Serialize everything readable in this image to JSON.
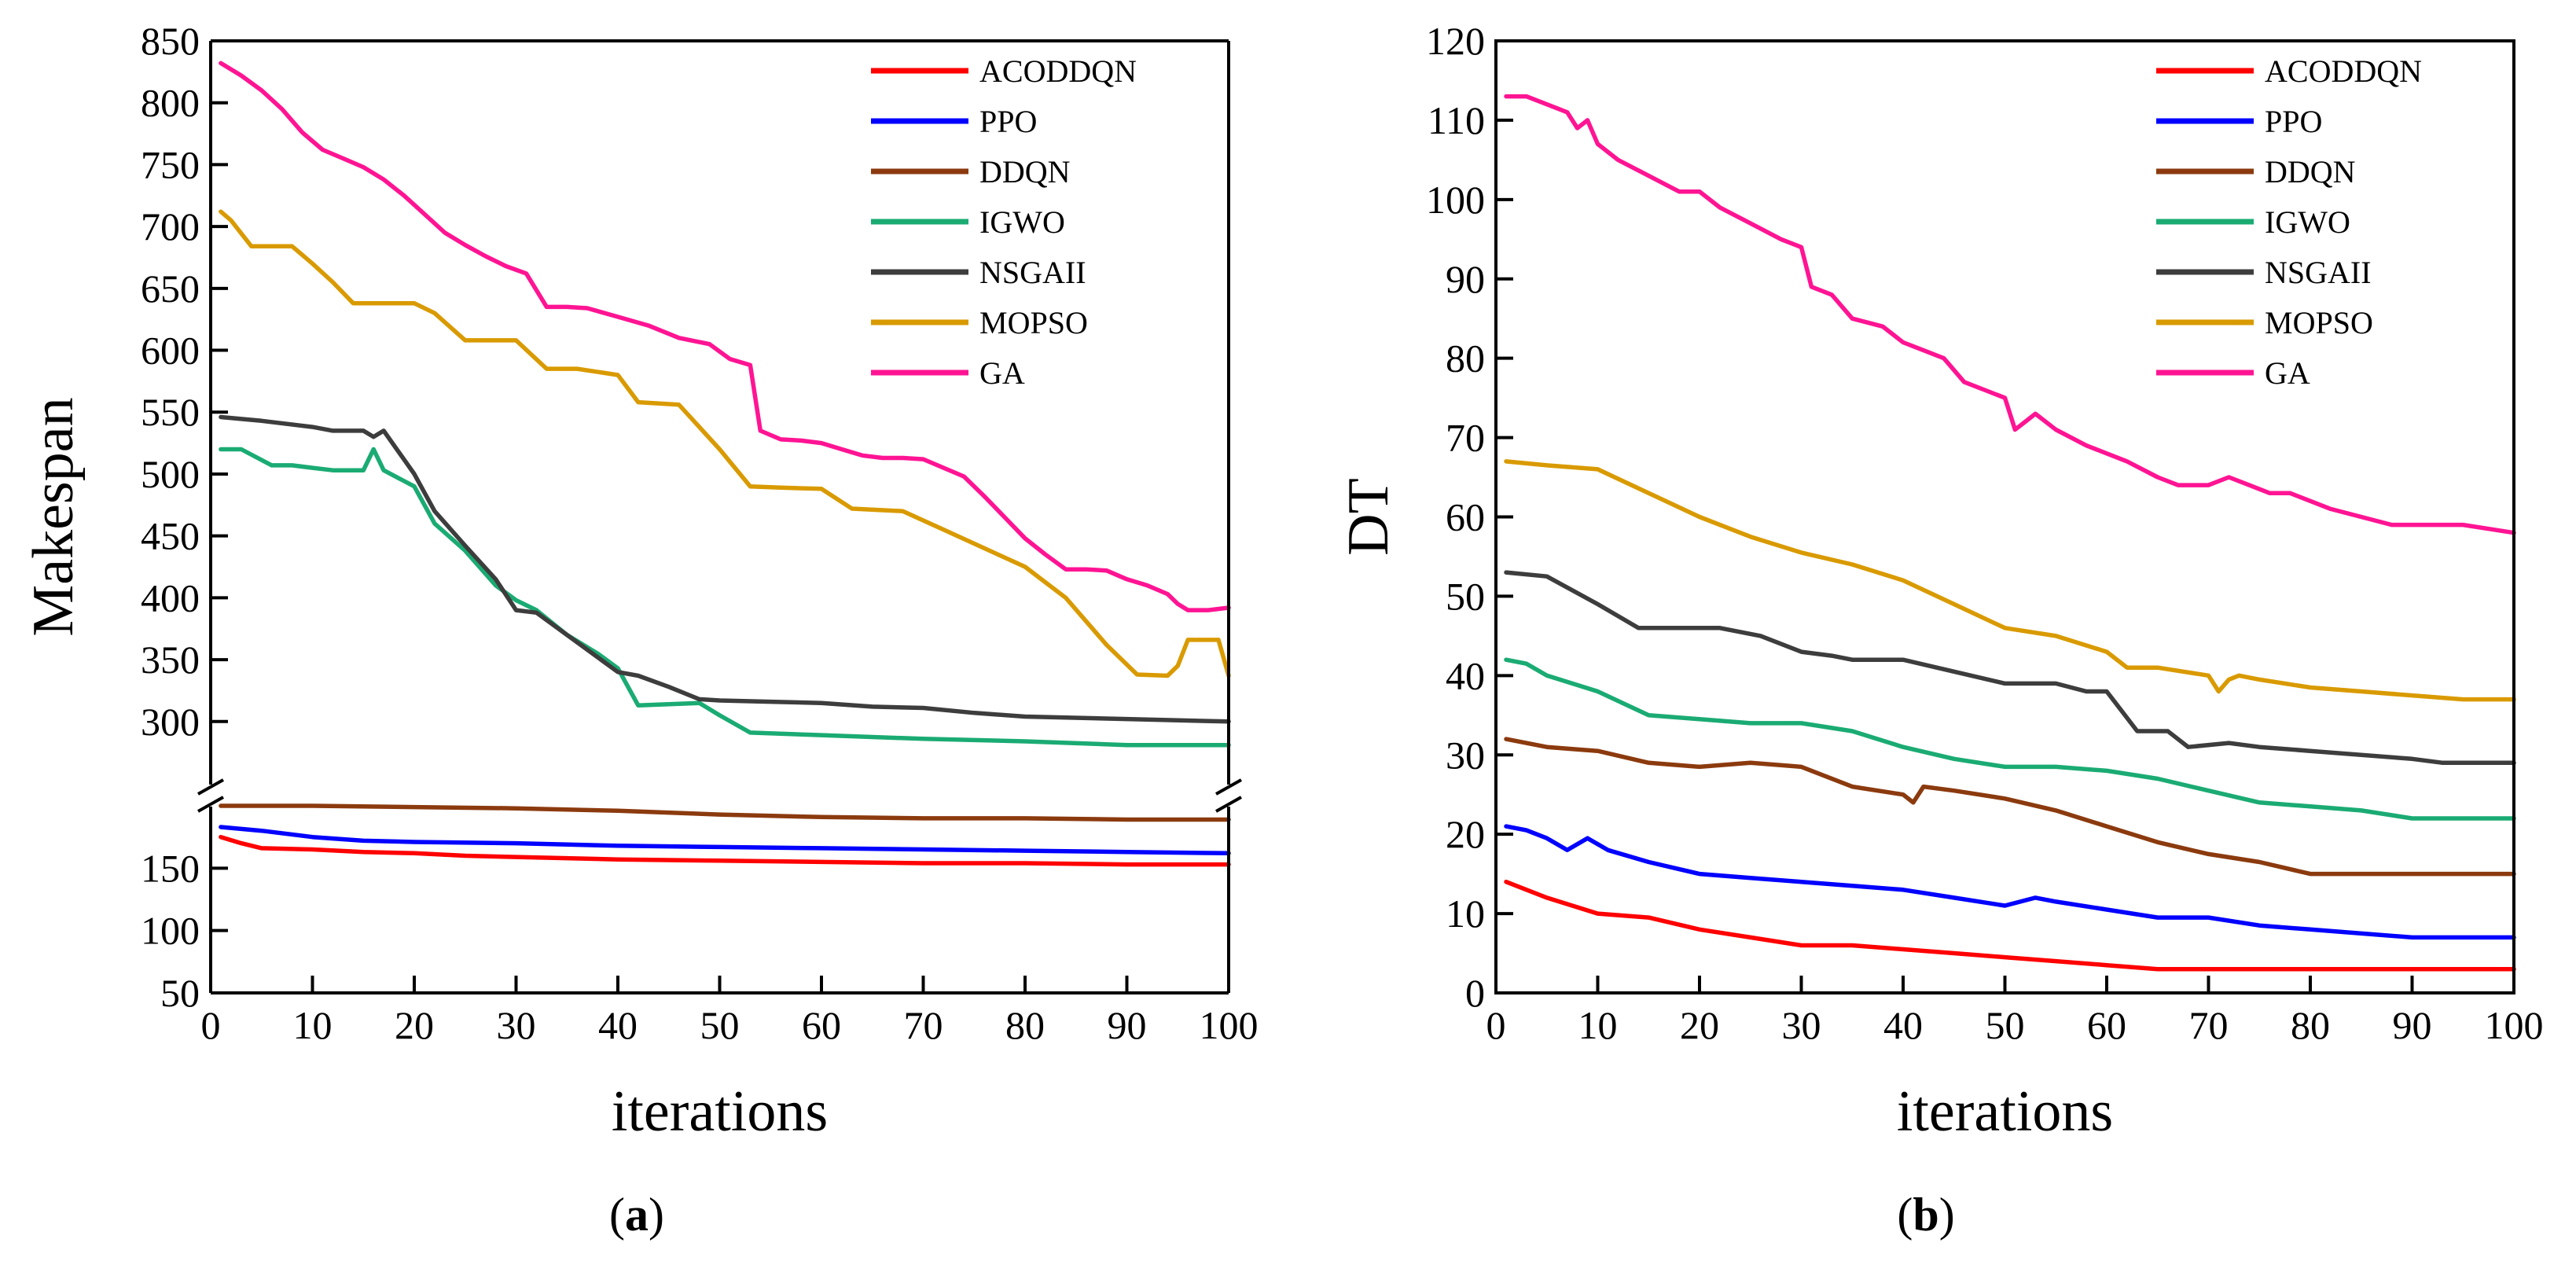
{
  "chart_data": [
    {
      "type": "line",
      "panel_label": "a",
      "xlabel": "iterations",
      "ylabel": "Makespan",
      "xlim": [
        0,
        100
      ],
      "xticks": [
        0,
        10,
        20,
        30,
        40,
        50,
        60,
        70,
        80,
        90,
        100
      ],
      "y_axis_break": true,
      "ylim_lower": [
        50,
        200
      ],
      "ylim_upper": [
        270,
        850
      ],
      "yticks": [
        50,
        100,
        150,
        300,
        350,
        400,
        450,
        500,
        550,
        600,
        650,
        700,
        750,
        800,
        850
      ],
      "legend_position": "top-right",
      "series": [
        {
          "name": "ACODDQN",
          "color": "#ff0000",
          "x": [
            1,
            3,
            5,
            10,
            15,
            20,
            25,
            30,
            40,
            50,
            60,
            70,
            80,
            90,
            100
          ],
          "y": [
            175,
            170,
            166,
            165,
            163,
            162,
            160,
            159,
            157,
            156,
            155,
            154,
            154,
            153,
            153
          ]
        },
        {
          "name": "PPO",
          "color": "#0000ff",
          "x": [
            1,
            5,
            10,
            15,
            20,
            30,
            40,
            50,
            60,
            70,
            80,
            90,
            100
          ],
          "y": [
            183,
            180,
            175,
            172,
            171,
            170,
            168,
            167,
            166,
            165,
            164,
            163,
            162
          ]
        },
        {
          "name": "DDQN",
          "color": "#8b3a0e",
          "x": [
            1,
            10,
            20,
            30,
            40,
            50,
            60,
            70,
            80,
            90,
            100
          ],
          "y": [
            200,
            200,
            199,
            198,
            196,
            193,
            191,
            190,
            190,
            189,
            189
          ]
        },
        {
          "name": "IGWO",
          "color": "#1aab73",
          "x": [
            1,
            3,
            6,
            8,
            10,
            12,
            15,
            16,
            17,
            20,
            22,
            25,
            28,
            30,
            32,
            35,
            38,
            40,
            42,
            45,
            48,
            50,
            53,
            60,
            70,
            80,
            90,
            100
          ],
          "y": [
            520,
            520,
            507,
            507,
            505,
            503,
            503,
            520,
            503,
            490,
            460,
            438,
            410,
            398,
            390,
            370,
            355,
            343,
            313,
            314,
            315,
            305,
            291,
            289,
            286,
            284,
            281,
            281
          ]
        },
        {
          "name": "NSGAII",
          "color": "#3d3d3d",
          "x": [
            1,
            5,
            10,
            12,
            15,
            16,
            17,
            20,
            22,
            25,
            28,
            30,
            32,
            35,
            38,
            40,
            42,
            45,
            48,
            50,
            55,
            60,
            65,
            70,
            75,
            80,
            90,
            100
          ],
          "y": [
            546,
            543,
            538,
            535,
            535,
            530,
            535,
            500,
            470,
            442,
            415,
            390,
            388,
            370,
            352,
            340,
            337,
            328,
            318,
            317,
            316,
            315,
            312,
            311,
            307,
            304,
            302,
            300
          ]
        },
        {
          "name": "MOPSO",
          "color": "#d99a00",
          "x": [
            1,
            2,
            4,
            8,
            10,
            12,
            14,
            16,
            20,
            22,
            25,
            30,
            33,
            36,
            40,
            42,
            46,
            50,
            53,
            56,
            60,
            63,
            68,
            72,
            76,
            80,
            84,
            88,
            91,
            94,
            95,
            96,
            99,
            100
          ],
          "y": [
            712,
            705,
            684,
            684,
            670,
            655,
            638,
            638,
            638,
            630,
            608,
            608,
            585,
            585,
            580,
            558,
            556,
            520,
            490,
            489,
            488,
            472,
            470,
            455,
            440,
            425,
            400,
            362,
            338,
            337,
            345,
            366,
            366,
            337
          ]
        },
        {
          "name": "GA",
          "color": "#ff1493",
          "x": [
            1,
            3,
            5,
            7,
            9,
            11,
            13,
            15,
            17,
            19,
            21,
            23,
            25,
            27,
            29,
            31,
            33,
            35,
            37,
            40,
            43,
            46,
            49,
            51,
            53,
            54,
            56,
            58,
            60,
            62,
            64,
            66,
            68,
            70,
            72,
            74,
            76,
            78,
            80,
            82,
            84,
            86,
            88,
            90,
            92,
            94,
            95,
            96,
            98,
            100
          ],
          "y": [
            832,
            822,
            810,
            795,
            776,
            762,
            755,
            748,
            738,
            725,
            710,
            695,
            685,
            676,
            668,
            662,
            635,
            635,
            634,
            627,
            620,
            610,
            605,
            593,
            588,
            535,
            528,
            527,
            525,
            520,
            515,
            513,
            513,
            512,
            505,
            498,
            482,
            465,
            448,
            435,
            423,
            423,
            422,
            415,
            410,
            403,
            395,
            390,
            390,
            392
          ]
        }
      ]
    },
    {
      "type": "line",
      "panel_label": "b",
      "xlabel": "iterations",
      "ylabel": "DT",
      "xlim": [
        0,
        100
      ],
      "ylim": [
        0,
        120
      ],
      "xticks": [
        0,
        10,
        20,
        30,
        40,
        50,
        60,
        70,
        80,
        90,
        100
      ],
      "yticks": [
        0,
        10,
        20,
        30,
        40,
        50,
        60,
        70,
        80,
        90,
        100,
        110,
        120
      ],
      "legend_position": "top-right",
      "series": [
        {
          "name": "ACODDQN",
          "color": "#ff0000",
          "x": [
            1,
            5,
            10,
            15,
            20,
            25,
            30,
            35,
            40,
            45,
            50,
            55,
            60,
            65,
            70,
            80,
            90,
            100
          ],
          "y": [
            14,
            12,
            10,
            9.5,
            8,
            7,
            6,
            6,
            5.5,
            5,
            4.5,
            4,
            3.5,
            3,
            3,
            3,
            3,
            3
          ]
        },
        {
          "name": "PPO",
          "color": "#0000ff",
          "x": [
            1,
            3,
            5,
            7,
            9,
            11,
            15,
            20,
            25,
            30,
            35,
            40,
            45,
            50,
            53,
            55,
            60,
            65,
            70,
            75,
            80,
            90,
            100
          ],
          "y": [
            21,
            20.5,
            19.5,
            18,
            19.5,
            18,
            16.5,
            15,
            14.5,
            14,
            13.5,
            13,
            12,
            11,
            12,
            11.5,
            10.5,
            9.5,
            9.5,
            8.5,
            8,
            7,
            7
          ]
        },
        {
          "name": "DDQN",
          "color": "#8b3a0e",
          "x": [
            1,
            5,
            10,
            15,
            20,
            25,
            30,
            35,
            40,
            41,
            42,
            45,
            50,
            55,
            60,
            65,
            70,
            75,
            80,
            85,
            90,
            100
          ],
          "y": [
            32,
            31,
            30.5,
            29,
            28.5,
            29,
            28.5,
            26,
            25,
            24,
            26,
            25.5,
            24.5,
            23,
            21,
            19,
            17.5,
            16.5,
            15,
            15,
            15,
            15
          ]
        },
        {
          "name": "IGWO",
          "color": "#1aab73",
          "x": [
            1,
            3,
            5,
            10,
            15,
            20,
            25,
            30,
            35,
            40,
            45,
            50,
            55,
            60,
            65,
            70,
            75,
            80,
            85,
            90,
            100
          ],
          "y": [
            42,
            41.5,
            40,
            38,
            35,
            34.5,
            34,
            34,
            33,
            31,
            29.5,
            28.5,
            28.5,
            28,
            27,
            25.5,
            24,
            23.5,
            23,
            22,
            22
          ]
        },
        {
          "name": "NSGAII",
          "color": "#3d3d3d",
          "x": [
            1,
            5,
            10,
            14,
            18,
            22,
            26,
            30,
            33,
            35,
            40,
            45,
            50,
            55,
            58,
            60,
            63,
            66,
            68,
            72,
            75,
            80,
            90,
            93,
            100
          ],
          "y": [
            53,
            52.5,
            49,
            46,
            46,
            46,
            45,
            43,
            42.5,
            42,
            42,
            40.5,
            39,
            39,
            38,
            38,
            33,
            33,
            31,
            31.5,
            31,
            30.5,
            29.5,
            29,
            29
          ]
        },
        {
          "name": "MOPSO",
          "color": "#d99a00",
          "x": [
            1,
            5,
            10,
            15,
            20,
            25,
            30,
            35,
            40,
            45,
            50,
            55,
            60,
            62,
            65,
            70,
            71,
            72,
            73,
            75,
            80,
            85,
            90,
            95,
            100
          ],
          "y": [
            67,
            66.5,
            66,
            63,
            60,
            57.5,
            55.5,
            54,
            52,
            49,
            46,
            45,
            43,
            41,
            41,
            40,
            38,
            39.5,
            40,
            39.5,
            38.5,
            38,
            37.5,
            37,
            37
          ]
        },
        {
          "name": "GA",
          "color": "#ff1493",
          "x": [
            1,
            3,
            5,
            7,
            8,
            9,
            10,
            12,
            15,
            18,
            20,
            22,
            25,
            28,
            30,
            31,
            33,
            35,
            38,
            40,
            42,
            44,
            46,
            48,
            50,
            51,
            52,
            53,
            55,
            58,
            60,
            62,
            65,
            67,
            70,
            72,
            74,
            76,
            78,
            80,
            82,
            85,
            88,
            90,
            95,
            100
          ],
          "y": [
            113,
            113,
            112,
            111,
            109,
            110,
            107,
            105,
            103,
            101,
            101,
            99,
            97,
            95,
            94,
            89,
            88,
            85,
            84,
            82,
            81,
            80,
            77,
            76,
            75,
            71,
            72,
            73,
            71,
            69,
            68,
            67,
            65,
            64,
            64,
            65,
            64,
            63,
            63,
            62,
            61,
            60,
            59,
            59,
            59,
            58
          ]
        }
      ]
    }
  ]
}
